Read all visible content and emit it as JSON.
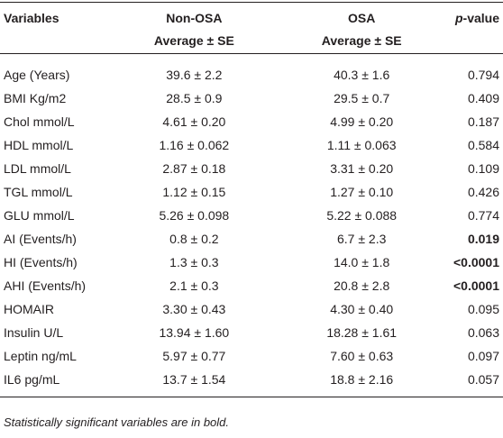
{
  "table": {
    "header": [
      [
        "Variables",
        "Non-OSA",
        "OSA",
        "p-value"
      ],
      [
        "",
        "Average ± SE",
        "Average ± SE",
        ""
      ]
    ],
    "rows": [
      [
        "Age (Years)",
        "39.6 ± 2.2",
        "40.3 ± 1.6",
        "0.794"
      ],
      [
        "BMI Kg/m2",
        "28.5 ± 0.9",
        "29.5 ± 0.7",
        "0.409"
      ],
      [
        "Chol mmol/L",
        "4.61 ± 0.20",
        "4.99 ± 0.20",
        "0.187"
      ],
      [
        "HDL mmol/L",
        "1.16 ± 0.062",
        "1.11 ± 0.063",
        "0.584"
      ],
      [
        "LDL mmol/L",
        "2.87 ± 0.18",
        "3.31 ± 0.20",
        "0.109"
      ],
      [
        "TGL mmol/L",
        "1.12 ± 0.15",
        "1.27 ± 0.10",
        "0.426"
      ],
      [
        "GLU mmol/L",
        "5.26 ± 0.098",
        "5.22 ± 0.088",
        "0.774"
      ],
      [
        "AI (Events/h)",
        "0.8 ± 0.2",
        "6.7 ± 2.3",
        "0.019"
      ],
      [
        "HI (Events/h)",
        "1.3 ± 0.3",
        "14.0 ± 1.8",
        "<0.0001"
      ],
      [
        "AHI (Events/h)",
        "2.1 ± 0.3",
        "20.8 ± 2.8",
        "<0.0001"
      ],
      [
        "HOMAIR",
        "3.30 ± 0.43",
        "4.30 ± 0.40",
        "0.095"
      ],
      [
        "Insulin U/L",
        "13.94 ± 1.60",
        "18.28 ± 1.61",
        "0.063"
      ],
      [
        "Leptin ng/mL",
        "5.97 ± 0.77",
        "7.60 ± 0.63",
        "0.097"
      ],
      [
        "IL6 pg/mL",
        "13.7 ± 1.54",
        "18.8 ± 2.16",
        "0.057"
      ]
    ],
    "bold_rows": [
      7,
      8,
      9
    ]
  },
  "footnote": "Statistically significant variables are in bold."
}
